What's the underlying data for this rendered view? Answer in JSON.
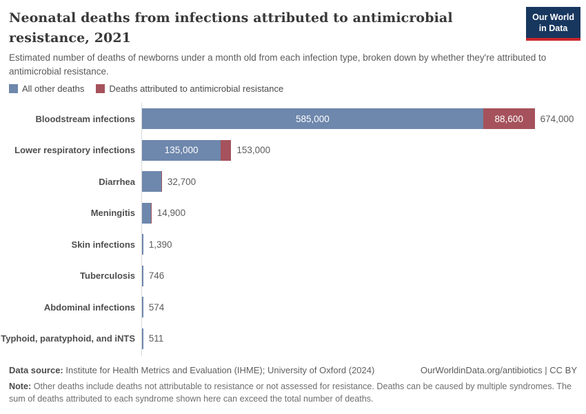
{
  "header": {
    "title": "Neonatal deaths from infections attributed to antimicrobial resistance, 2021",
    "subtitle": "Estimated number of deaths of newborns under a month old from each infection type, broken down by whether they're attributed to antimicrobial resistance.",
    "logo": {
      "line1": "Our World",
      "line2": "in Data"
    }
  },
  "colors": {
    "other_deaths": "#6e87ac",
    "amr_deaths": "#a5525c",
    "logo_navy": "#18375f",
    "logo_red": "#c9262c",
    "axis_line": "#d6d8dc"
  },
  "legend": [
    {
      "label": "All other deaths",
      "color": "#6e87ac"
    },
    {
      "label": "Deaths attributed to antimicrobial resistance",
      "color": "#a5525c"
    }
  ],
  "chart_data": {
    "type": "bar",
    "orientation": "horizontal",
    "stacked": true,
    "title": "Neonatal deaths from infections attributed to antimicrobial resistance, 2021",
    "xlabel": "",
    "ylabel": "",
    "xlim": [
      0,
      674000
    ],
    "grid": false,
    "legend_position": "top-left",
    "categories": [
      "Bloodstream infections",
      "Lower respiratory infections",
      "Diarrhea",
      "Meningitis",
      "Skin infections",
      "Tuberculosis",
      "Abdominal infections",
      "Typhoid, paratyphoid, and iNTS"
    ],
    "series": [
      {
        "name": "All other deaths",
        "color": "#6e87ac",
        "values": [
          585000,
          135000,
          32700,
          14900,
          1390,
          746,
          574,
          511
        ]
      },
      {
        "name": "Deaths attributed to antimicrobial resistance",
        "color": "#a5525c",
        "values": [
          88600,
          18000,
          null,
          null,
          null,
          null,
          null,
          null
        ]
      }
    ],
    "totals": [
      674000,
      153000,
      32700,
      14900,
      1390,
      746,
      574,
      511
    ],
    "total_labels": [
      "674,000",
      "153,000",
      "32,700",
      "14,900",
      "1,390",
      "746",
      "574",
      "511"
    ],
    "inside_labels_other": [
      "585,000",
      "135,000",
      null,
      null,
      null,
      null,
      null,
      null
    ],
    "inside_labels_amr": [
      "88,600",
      null,
      null,
      null,
      null,
      null,
      null,
      null
    ],
    "red_edge_rows": [
      2,
      3
    ]
  },
  "footer": {
    "datasource_label": "Data source:",
    "datasource_value": "Institute for Health Metrics and Evaluation (IHME); University of Oxford (2024)",
    "link": "OurWorldinData.org/antibiotics | CC BY",
    "note_label": "Note:",
    "note_text": "Other deaths include deaths not attributable to resistance or not assessed for resistance. Deaths can be caused by multiple syndromes. The sum of deaths attributed to each syndrome shown here can exceed the total number of deaths."
  }
}
